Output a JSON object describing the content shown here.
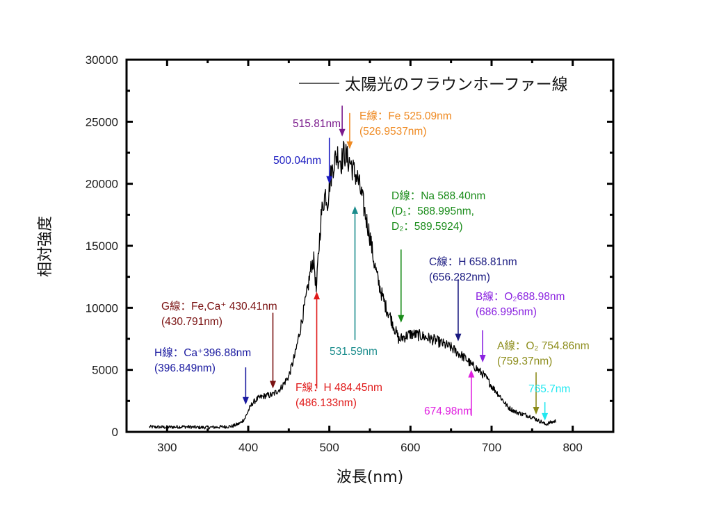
{
  "chart_data": {
    "type": "line",
    "title": "",
    "xlabel": "波長(nm)",
    "ylabel": "相対強度",
    "xlim": [
      250,
      850
    ],
    "ylim": [
      0,
      30000
    ],
    "x_ticks": [
      300,
      400,
      500,
      600,
      700,
      800
    ],
    "x_minor_ticks": [
      350,
      450,
      550,
      650,
      750
    ],
    "y_ticks": [
      0,
      5000,
      10000,
      15000,
      20000,
      25000,
      30000
    ],
    "y_minor_ticks": [
      2500,
      7500,
      12500,
      17500,
      22500,
      27500
    ],
    "grid": false,
    "legend": {
      "position": "top-right",
      "entries": [
        "太陽光のフラウンホーファー線"
      ]
    },
    "series": [
      {
        "name": "太陽光のフラウンホーファー線",
        "color": "#000000",
        "x": [
          278,
          300,
          320,
          340,
          360,
          380,
          390,
          396,
          400,
          405,
          412,
          420,
          430,
          440,
          450,
          458,
          465,
          472,
          478,
          481,
          484,
          486,
          490,
          495,
          498,
          500,
          505,
          510,
          515,
          518,
          522,
          526,
          530,
          535,
          540,
          545,
          550,
          555,
          560,
          565,
          570,
          575,
          580,
          586,
          590,
          594,
          600,
          610,
          620,
          630,
          640,
          650,
          660,
          670,
          675,
          680,
          685,
          690,
          695,
          700,
          710,
          720,
          730,
          740,
          750,
          758,
          762,
          766,
          770,
          775,
          780
        ],
        "y": [
          400,
          380,
          420,
          360,
          380,
          450,
          700,
          1100,
          1700,
          2300,
          2700,
          2900,
          3000,
          3500,
          4500,
          6300,
          8600,
          11000,
          13500,
          13800,
          11200,
          13800,
          17500,
          19300,
          18500,
          20000,
          21600,
          22400,
          21800,
          22600,
          22000,
          21700,
          21000,
          20400,
          19000,
          17300,
          15800,
          13700,
          12200,
          11000,
          10000,
          9300,
          8400,
          7400,
          7600,
          7700,
          7900,
          7800,
          7600,
          7400,
          7100,
          6800,
          6300,
          5800,
          5400,
          5200,
          4900,
          4600,
          4200,
          3700,
          2900,
          2000,
          1600,
          1400,
          1200,
          900,
          800,
          600,
          700,
          800,
          900
        ]
      }
    ],
    "annotations": [
      {
        "id": "h-line",
        "lines": [
          "H線：Ca⁺396.88nm",
          "(396.849nm)"
        ],
        "wavelength": 396.88,
        "direction": "down",
        "color": "#1a1aa0",
        "arrow_from": 5200,
        "arrow_to": 2200
      },
      {
        "id": "g-line",
        "lines": [
          "G線：Fe,Ca⁺ 430.41nm",
          "(430.791nm)"
        ],
        "wavelength": 430.41,
        "direction": "down",
        "color": "#7a1212",
        "arrow_from": 9600,
        "arrow_to": 3500
      },
      {
        "id": "f-line",
        "lines": [
          "F線：H 484.45nm",
          "(486.133nm)"
        ],
        "wavelength": 484.45,
        "direction": "up",
        "color": "#e01818",
        "arrow_from": 3500,
        "arrow_to": 11300
      },
      {
        "id": "500-line",
        "lines": [
          "500.04nm"
        ],
        "wavelength": 500.04,
        "direction": "down",
        "color": "#1a1ac0",
        "arrow_from": 23700,
        "arrow_to": 20000
      },
      {
        "id": "515-line",
        "lines": [
          "515.81nm"
        ],
        "wavelength": 515.81,
        "direction": "down",
        "color": "#7a1a8c",
        "arrow_from": 26300,
        "arrow_to": 23800
      },
      {
        "id": "e-line",
        "lines": [
          "E線：Fe 525.09nm",
          "(526.9537nm)"
        ],
        "wavelength": 525.09,
        "direction": "down",
        "color": "#ef8a22",
        "arrow_from": 25700,
        "arrow_to": 22800
      },
      {
        "id": "531-line",
        "lines": [
          "531.59nm"
        ],
        "wavelength": 531.59,
        "direction": "up",
        "color": "#1a8c8c",
        "arrow_from": 7400,
        "arrow_to": 18200
      },
      {
        "id": "d-line",
        "lines": [
          "D線：Na 588.40nm",
          "(D₁：588.995nm,",
          "D₂：589.5924)"
        ],
        "wavelength": 588.4,
        "direction": "down",
        "color": "#1a8c1a",
        "arrow_from": 14700,
        "arrow_to": 8800
      },
      {
        "id": "c-line",
        "lines": [
          "C線：H 658.81nm",
          "(656.282nm)"
        ],
        "wavelength": 658.81,
        "direction": "down",
        "color": "#1a1a80",
        "arrow_from": 12300,
        "arrow_to": 7300
      },
      {
        "id": "674-line",
        "lines": [
          "674.98nm"
        ],
        "wavelength": 674.98,
        "direction": "up",
        "color": "#e020e0",
        "arrow_from": 1300,
        "arrow_to": 5000
      },
      {
        "id": "b-line",
        "lines": [
          "B線：O₂688.98nm",
          "(686.995nm)"
        ],
        "wavelength": 688.98,
        "direction": "down",
        "color": "#8a22e0",
        "arrow_from": 8200,
        "arrow_to": 5600
      },
      {
        "id": "a-line",
        "lines": [
          "A線：O₂ 754.86nm",
          "(759.37nm)"
        ],
        "wavelength": 754.86,
        "direction": "down",
        "color": "#8c8c1a",
        "arrow_from": 4800,
        "arrow_to": 1400
      },
      {
        "id": "765-line",
        "lines": [
          "765.7nm"
        ],
        "wavelength": 765.7,
        "direction": "down",
        "color": "#22e8f0",
        "arrow_from": 2400,
        "arrow_to": 900
      }
    ]
  }
}
